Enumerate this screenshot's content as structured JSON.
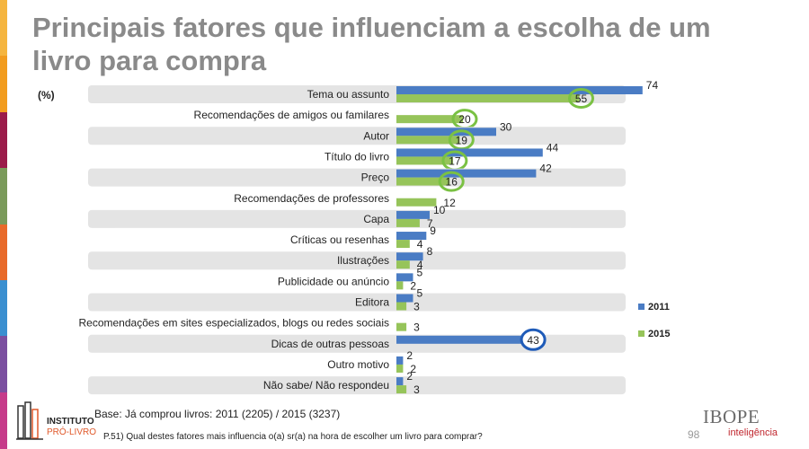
{
  "page": {
    "title": "Principais fatores que influenciam a escolha de um livro para compra",
    "unit": "(%)",
    "base_note": "Base: Já comprou livros: 2011 (2205) / 2015 (3237)",
    "question": "P.51) Qual destes fatores mais influencia o(a) sr(a) na hora de escolher um livro para comprar?",
    "page_number": "98",
    "brand": "IBOPE",
    "brand_sub": "inteligência",
    "logo_line1": "INSTITUTO",
    "logo_line2": "PRÓ-LIVRO"
  },
  "colors": {
    "series_2011": "#4a7cc4",
    "series_2015": "#96c45a",
    "row_band": "#e4e4e4",
    "highlight_green": "#7ac143",
    "highlight_blue": "#1f5bb8",
    "title": "#8a8a8a",
    "strip": [
      "#f5b53f",
      "#f29c1f",
      "#9b1b4a",
      "#7a9a5a",
      "#e86a2a",
      "#3a8fd0",
      "#7b4fa0",
      "#c63b8a"
    ]
  },
  "chart_data": {
    "type": "bar",
    "orientation": "horizontal",
    "categories": [
      "Tema ou assunto",
      "Recomendações de amigos ou familares",
      "Autor",
      "Título do livro",
      "Preço",
      "Recomendações de professores",
      "Capa",
      "Críticas ou resenhas",
      "Ilustrações",
      "Publicidade ou anúncio",
      "Editora",
      "Recomendações em sites especializados, blogs ou redes sociais",
      "Dicas de outras pessoas",
      "Outro motivo",
      "Não sabe/ Não respondeu"
    ],
    "series": [
      {
        "name": "2011",
        "values": [
          74,
          null,
          30,
          44,
          42,
          null,
          10,
          9,
          8,
          5,
          5,
          null,
          43,
          2,
          2
        ]
      },
      {
        "name": "2015",
        "values": [
          55,
          20,
          19,
          17,
          16,
          12,
          7,
          4,
          4,
          2,
          3,
          3,
          null,
          2,
          3
        ]
      }
    ],
    "highlighted": [
      {
        "series": "2015",
        "index": 0
      },
      {
        "series": "2015",
        "index": 1
      },
      {
        "series": "2015",
        "index": 2
      },
      {
        "series": "2015",
        "index": 3
      },
      {
        "series": "2015",
        "index": 4
      },
      {
        "series": "2011",
        "index": 12
      }
    ],
    "legend_position": "right",
    "grid": false,
    "xlim": [
      0,
      80
    ]
  }
}
